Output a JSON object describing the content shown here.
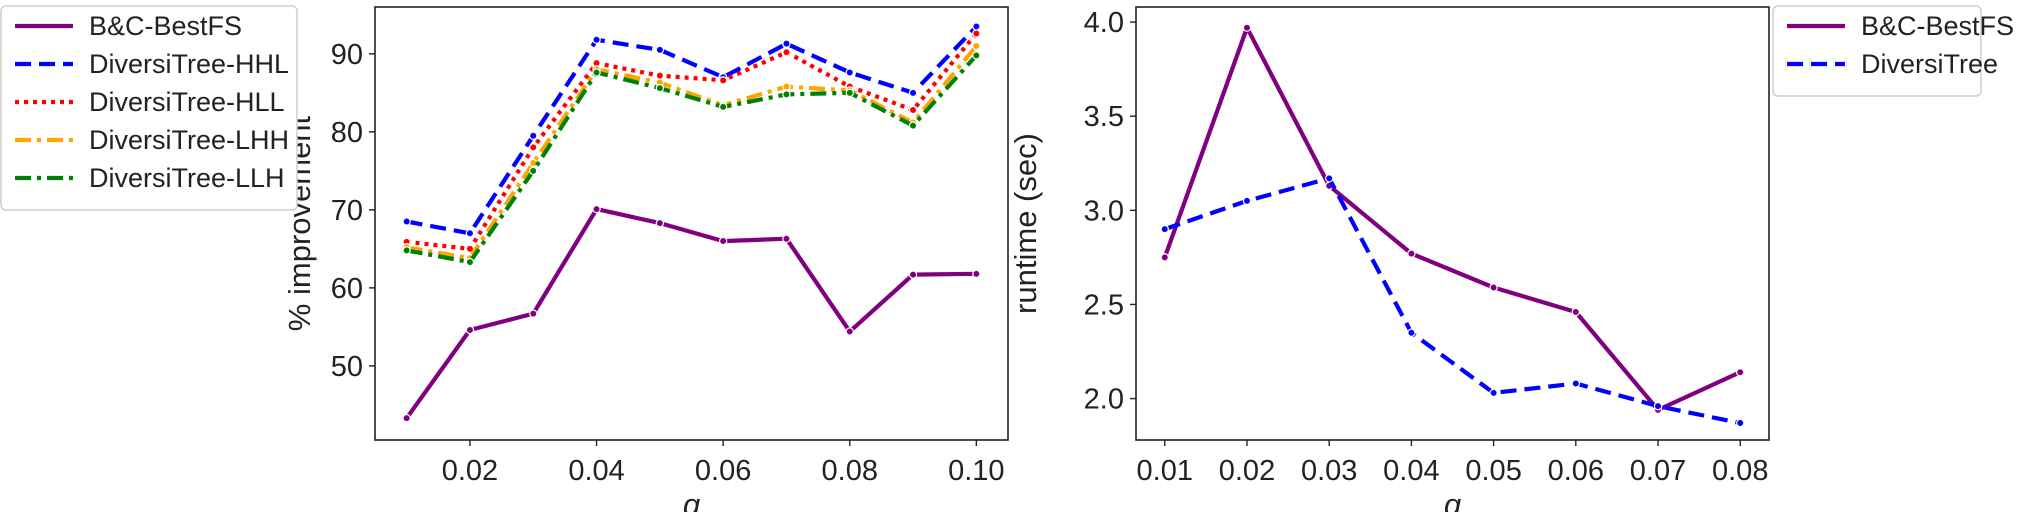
{
  "chart_data": [
    {
      "type": "line",
      "xlabel": "q",
      "ylabel": "% improvement",
      "xlim": [
        0.005,
        0.105
      ],
      "ylim": [
        40.5,
        96
      ],
      "xticks": [
        "0.02",
        "0.04",
        "0.06",
        "0.08",
        "0.10"
      ],
      "yticks": [
        "50",
        "60",
        "70",
        "80",
        "90"
      ],
      "grid": false,
      "legend_position": "outside-left",
      "x": [
        0.01,
        0.02,
        0.03,
        0.04,
        0.05,
        0.06,
        0.07,
        0.08,
        0.09,
        0.1
      ],
      "series": [
        {
          "name": "B&C-BestFS",
          "color": "#800080",
          "dash": "solid",
          "values": [
            43.3,
            54.6,
            56.7,
            70.1,
            68.3,
            66.0,
            66.3,
            54.4,
            61.7,
            61.8
          ]
        },
        {
          "name": "DiversiTree-HHL",
          "color": "#0000ff",
          "dash": "dashed",
          "values": [
            68.5,
            67.0,
            79.5,
            91.8,
            90.5,
            87.0,
            91.3,
            87.6,
            85.0,
            93.5
          ]
        },
        {
          "name": "DiversiTree-HLL",
          "color": "#ff0000",
          "dash": "dotted",
          "values": [
            65.9,
            65.0,
            78.0,
            88.8,
            87.2,
            86.6,
            90.2,
            85.8,
            82.8,
            92.6
          ]
        },
        {
          "name": "DiversiTree-LHH",
          "color": "#ffa500",
          "dash": "dashdot",
          "values": [
            65.2,
            63.8,
            76.0,
            88.0,
            86.3,
            83.4,
            85.8,
            85.3,
            81.2,
            91.0
          ]
        },
        {
          "name": "DiversiTree-LLH",
          "color": "#008000",
          "dash": "dashdot",
          "values": [
            64.8,
            63.3,
            75.0,
            87.6,
            85.6,
            83.2,
            84.8,
            85.0,
            80.8,
            89.8
          ]
        }
      ]
    },
    {
      "type": "line",
      "xlabel": "q",
      "ylabel": "runtime (sec)",
      "xlim": [
        0.0065,
        0.0835
      ],
      "ylim": [
        1.78,
        4.08
      ],
      "xticks": [
        "0.01",
        "0.02",
        "0.03",
        "0.04",
        "0.05",
        "0.06",
        "0.07",
        "0.08"
      ],
      "yticks": [
        "2.0",
        "2.5",
        "3.0",
        "3.5",
        "4.0"
      ],
      "grid": false,
      "legend_position": "outside-right",
      "x": [
        0.01,
        0.02,
        0.03,
        0.04,
        0.05,
        0.06,
        0.07,
        0.08
      ],
      "series": [
        {
          "name": "B&C-BestFS",
          "color": "#800080",
          "dash": "solid",
          "values": [
            2.75,
            3.97,
            3.13,
            2.77,
            2.59,
            2.46,
            1.94,
            2.14
          ]
        },
        {
          "name": "DiversiTree",
          "color": "#0000ff",
          "dash": "dashed",
          "values": [
            2.9,
            3.05,
            3.17,
            2.35,
            2.03,
            2.08,
            1.96,
            1.87
          ]
        }
      ]
    }
  ]
}
